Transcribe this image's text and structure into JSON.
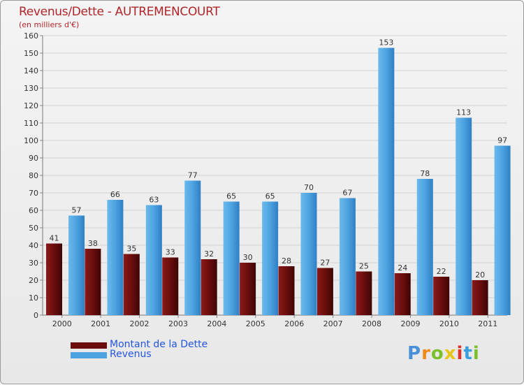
{
  "chart_data": {
    "type": "bar",
    "title": "Revenus/Dette - AUTREMENCOURT",
    "subtitle": "(en milliers d'€)",
    "categories": [
      "2000",
      "2001",
      "2002",
      "2003",
      "2004",
      "2005",
      "2006",
      "2007",
      "2008",
      "2009",
      "2010",
      "2011"
    ],
    "series": [
      {
        "name": "Montant de la Dette",
        "color": "#6b0d0d",
        "values": [
          41,
          38,
          35,
          33,
          32,
          30,
          28,
          27,
          25,
          24,
          22,
          20
        ]
      },
      {
        "name": "Revenus",
        "color": "#4da3e0",
        "values": [
          57,
          66,
          63,
          77,
          65,
          65,
          70,
          67,
          153,
          78,
          113,
          97
        ]
      }
    ],
    "ylim": [
      0,
      160
    ],
    "yticks": [
      0,
      10,
      20,
      30,
      40,
      50,
      60,
      70,
      80,
      90,
      100,
      110,
      120,
      130,
      140,
      150,
      160
    ],
    "grid": true,
    "legend": "bottom-left"
  },
  "logo": {
    "letters": [
      "P",
      "r",
      "o",
      "x",
      "i",
      "t",
      "i"
    ],
    "colors": [
      "#4a90d9",
      "#f08a1c",
      "#7bbf2a",
      "#e8c51a",
      "#d9342b",
      "#3aa0dd",
      "#7bbf2a"
    ]
  }
}
